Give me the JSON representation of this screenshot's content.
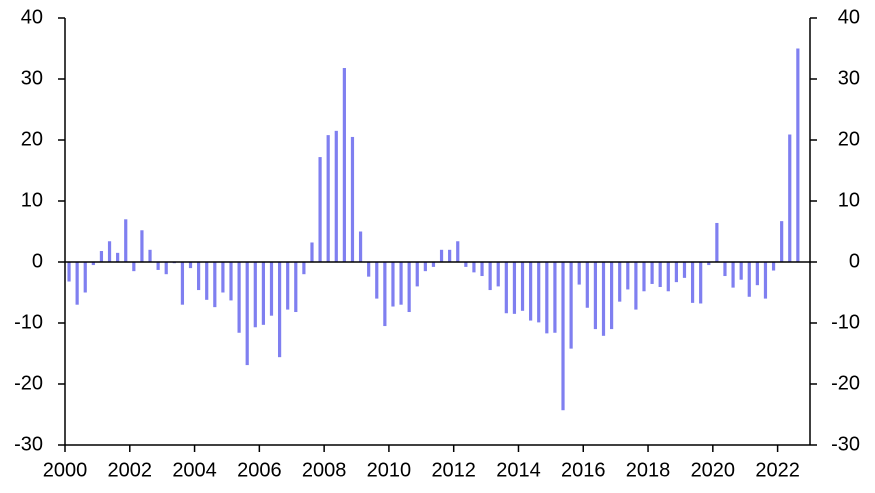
{
  "chart_data": {
    "type": "bar",
    "color": "#7f7ff0",
    "x": [
      2000.125,
      2000.375,
      2000.625,
      2000.875,
      2001.125,
      2001.375,
      2001.625,
      2001.875,
      2002.125,
      2002.375,
      2002.625,
      2002.875,
      2003.125,
      2003.375,
      2003.625,
      2003.875,
      2004.125,
      2004.375,
      2004.625,
      2004.875,
      2005.125,
      2005.375,
      2005.625,
      2005.875,
      2006.125,
      2006.375,
      2006.625,
      2006.875,
      2007.125,
      2007.375,
      2007.625,
      2007.875,
      2008.125,
      2008.375,
      2008.625,
      2008.875,
      2009.125,
      2009.375,
      2009.625,
      2009.875,
      2010.125,
      2010.375,
      2010.625,
      2010.875,
      2011.125,
      2011.375,
      2011.625,
      2011.875,
      2012.125,
      2012.375,
      2012.625,
      2012.875,
      2013.125,
      2013.375,
      2013.625,
      2013.875,
      2014.125,
      2014.375,
      2014.625,
      2014.875,
      2015.125,
      2015.375,
      2015.625,
      2015.875,
      2016.125,
      2016.375,
      2016.625,
      2016.875,
      2017.125,
      2017.375,
      2017.625,
      2017.875,
      2018.125,
      2018.375,
      2018.625,
      2018.875,
      2019.125,
      2019.375,
      2019.625,
      2019.875,
      2020.125,
      2020.375,
      2020.625,
      2020.875,
      2021.125,
      2021.375,
      2021.625,
      2021.875,
      2022.125,
      2022.375,
      2022.625
    ],
    "values": [
      -3.2,
      -7,
      -5,
      -0.5,
      1.8,
      3.4,
      1.5,
      7,
      -1.5,
      5.2,
      2,
      -1.3,
      -2,
      -0.2,
      -7,
      -1,
      -4.6,
      -6.2,
      -7.4,
      -5,
      -6.3,
      -11.6,
      -16.9,
      -10.7,
      -10.3,
      -8.8,
      -15.6,
      -7.8,
      -8.2,
      -2,
      3.2,
      17.2,
      20.8,
      21.5,
      31.8,
      20.5,
      5,
      -2.4,
      -6,
      -10.5,
      -7.3,
      -7,
      -8.2,
      -4,
      -1.5,
      -0.8,
      2,
      2,
      3.4,
      -0.8,
      -1.7,
      -2.3,
      -4.6,
      -4,
      -8.4,
      -8.5,
      -8,
      -9.6,
      -9.9,
      -11.7,
      -11.6,
      -24.3,
      -14.2,
      -3.7,
      -7.5,
      -11,
      -12.1,
      -11,
      -6.5,
      -4.5,
      -7.8,
      -4.8,
      -3.6,
      -4.1,
      -4.8,
      -3.3,
      -2.6,
      -6.7,
      -6.8,
      -0.5,
      6.4,
      -2.3,
      -4.2,
      -2.9,
      -5.7,
      -3.8,
      -6,
      -1.4,
      6.7,
      20.9,
      35
    ],
    "xlim": [
      2000,
      2023
    ],
    "xticks": [
      2000,
      2002,
      2004,
      2006,
      2008,
      2010,
      2012,
      2014,
      2016,
      2018,
      2020,
      2022
    ],
    "ylim": [
      -30,
      40
    ],
    "yticks": [
      -30,
      -20,
      -10,
      0,
      10,
      20,
      30,
      40
    ],
    "y2lim": [
      -30,
      40
    ],
    "y2ticks": [
      -30,
      -20,
      -10,
      0,
      10,
      20,
      30,
      40
    ]
  }
}
